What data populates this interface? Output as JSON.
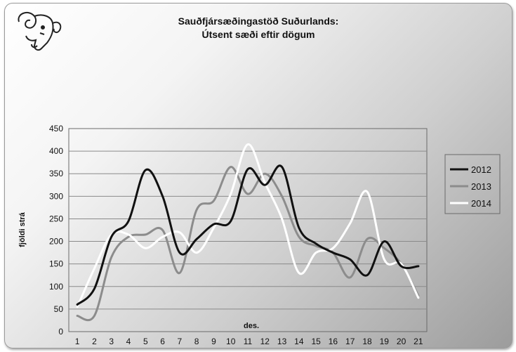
{
  "chart_data": {
    "type": "line",
    "title": "Sauðfjársæðingastöð Suðurlands:",
    "subtitle": "Útsent sæði eftir dögum",
    "xlabel": "des.",
    "ylabel": "fjöldi strá",
    "ylim": [
      0,
      450
    ],
    "yticks": [
      0,
      50,
      100,
      150,
      200,
      250,
      300,
      350,
      400,
      450
    ],
    "x": [
      1,
      2,
      3,
      4,
      5,
      6,
      7,
      8,
      9,
      10,
      11,
      12,
      13,
      14,
      15,
      16,
      17,
      18,
      19,
      20,
      21
    ],
    "grid": "horizontal",
    "legend_position": "right",
    "series": [
      {
        "name": "2012",
        "color": "#111111",
        "values": [
          60,
          95,
          210,
          245,
          358,
          300,
          175,
          205,
          238,
          245,
          360,
          325,
          365,
          230,
          195,
          175,
          160,
          125,
          200,
          145,
          145
        ]
      },
      {
        "name": "2013",
        "color": "#8c8c8c",
        "values": [
          35,
          35,
          165,
          210,
          215,
          225,
          130,
          270,
          290,
          365,
          305,
          350,
          300,
          210,
          190,
          175,
          120,
          205,
          185,
          150,
          80
        ]
      },
      {
        "name": "2014",
        "color": "#ffffff",
        "values": [
          55,
          140,
          215,
          215,
          185,
          210,
          220,
          175,
          230,
          305,
          415,
          330,
          250,
          130,
          175,
          185,
          240,
          310,
          160,
          150,
          75
        ]
      }
    ]
  },
  "logo": {
    "icon": "ram-head-icon"
  }
}
